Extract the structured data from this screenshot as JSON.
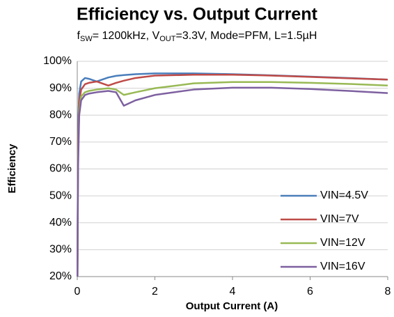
{
  "chart_data": {
    "type": "line",
    "title": "Efficiency vs. Output Current",
    "subtitle_parts": [
      "f",
      "SW",
      "= 1200kHz, V",
      "OUT",
      "=3.3V, Mode=PFM, L=1.5µH"
    ],
    "xlabel": "Output Current (A)",
    "ylabel": "Efficiency",
    "x": [
      0.005,
      0.02,
      0.05,
      0.1,
      0.2,
      0.3,
      0.5,
      0.8,
      1,
      1.2,
      1.5,
      2,
      3,
      4,
      5,
      6,
      7,
      8
    ],
    "series": [
      {
        "name": "VIN=4.5V",
        "color": "#4a7ebb",
        "values": [
          20,
          75,
          88,
          92.5,
          93.8,
          93.5,
          92.5,
          94,
          94.6,
          94.9,
          95.2,
          95.5,
          95.5,
          95.2,
          94.8,
          94.3,
          93.8,
          93.2
        ]
      },
      {
        "name": "VIN=7V",
        "color": "#be4b48",
        "values": [
          20,
          70,
          85,
          89.5,
          91.5,
          92,
          92.5,
          91,
          92,
          92.8,
          93.8,
          94.7,
          95,
          95,
          94.7,
          94.2,
          93.7,
          93.2
        ]
      },
      {
        "name": "VIN=12V",
        "color": "#98b954",
        "values": [
          20,
          65,
          82,
          87,
          88.5,
          89,
          89.5,
          90,
          89.5,
          87.5,
          88.5,
          90,
          91.8,
          92.3,
          92.3,
          92,
          91.6,
          91
        ]
      },
      {
        "name": "VIN=16V",
        "color": "#7d60a0",
        "values": [
          20,
          60,
          80,
          85.5,
          87.5,
          88,
          88.5,
          89,
          88.5,
          83.5,
          85.5,
          87.5,
          89.5,
          90.2,
          90.2,
          89.7,
          89,
          88.2
        ]
      }
    ],
    "xlim": [
      0,
      8
    ],
    "xticks": [
      0,
      2,
      4,
      6,
      8
    ],
    "ylim": [
      20,
      100
    ],
    "yticks": [
      {
        "value": 20,
        "label": "20%"
      },
      {
        "value": 30,
        "label": "30%"
      },
      {
        "value": 40,
        "label": "40%"
      },
      {
        "value": 50,
        "label": "50%"
      },
      {
        "value": 60,
        "label": "60%"
      },
      {
        "value": 70,
        "label": "70%"
      },
      {
        "value": 80,
        "label": "80%"
      },
      {
        "value": 90,
        "label": "90%"
      },
      {
        "value": 100,
        "label": "100%"
      }
    ],
    "grid": true,
    "legend": "lower right"
  }
}
